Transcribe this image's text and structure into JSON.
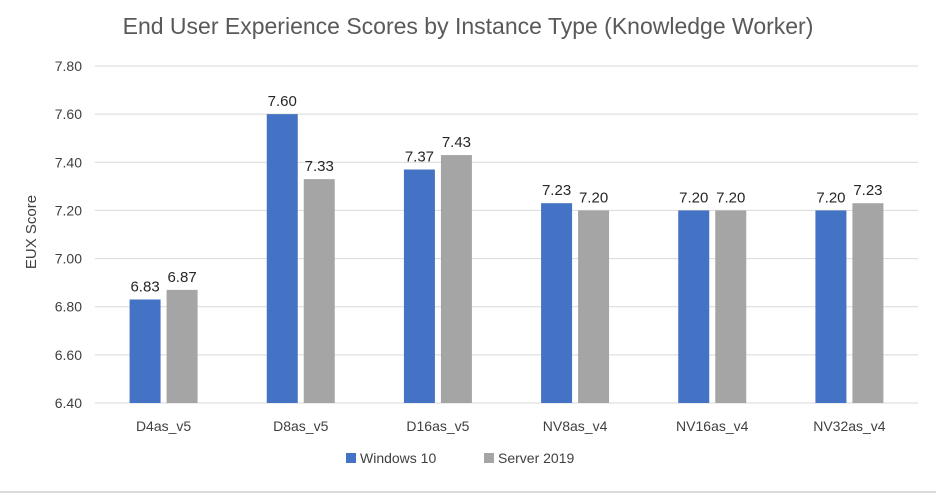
{
  "chart_data": {
    "type": "bar",
    "title": "End User Experience Scores by Instance Type (Knowledge Worker)",
    "xlabel": "",
    "ylabel": "EUX Score",
    "ylim": [
      6.4,
      7.8
    ],
    "yticks": [
      "6.40",
      "6.60",
      "6.80",
      "7.00",
      "7.20",
      "7.40",
      "7.60",
      "7.80"
    ],
    "grid": true,
    "legend_position": "bottom",
    "categories": [
      "D4as_v5",
      "D8as_v5",
      "D16as_v5",
      "NV8as_v4",
      "NV16as_v4",
      "NV32as_v4"
    ],
    "series": [
      {
        "name": "Windows 10",
        "color": "#4472c4",
        "values": [
          6.83,
          7.6,
          7.37,
          7.23,
          7.2,
          7.2
        ],
        "labels": [
          "6.83",
          "7.60",
          "7.37",
          "7.23",
          "7.20",
          "7.20"
        ]
      },
      {
        "name": "Server 2019",
        "color": "#a5a5a5",
        "values": [
          6.87,
          7.33,
          7.43,
          7.2,
          7.2,
          7.23
        ],
        "labels": [
          "6.87",
          "7.33",
          "7.43",
          "7.20",
          "7.20",
          "7.23"
        ]
      }
    ]
  }
}
